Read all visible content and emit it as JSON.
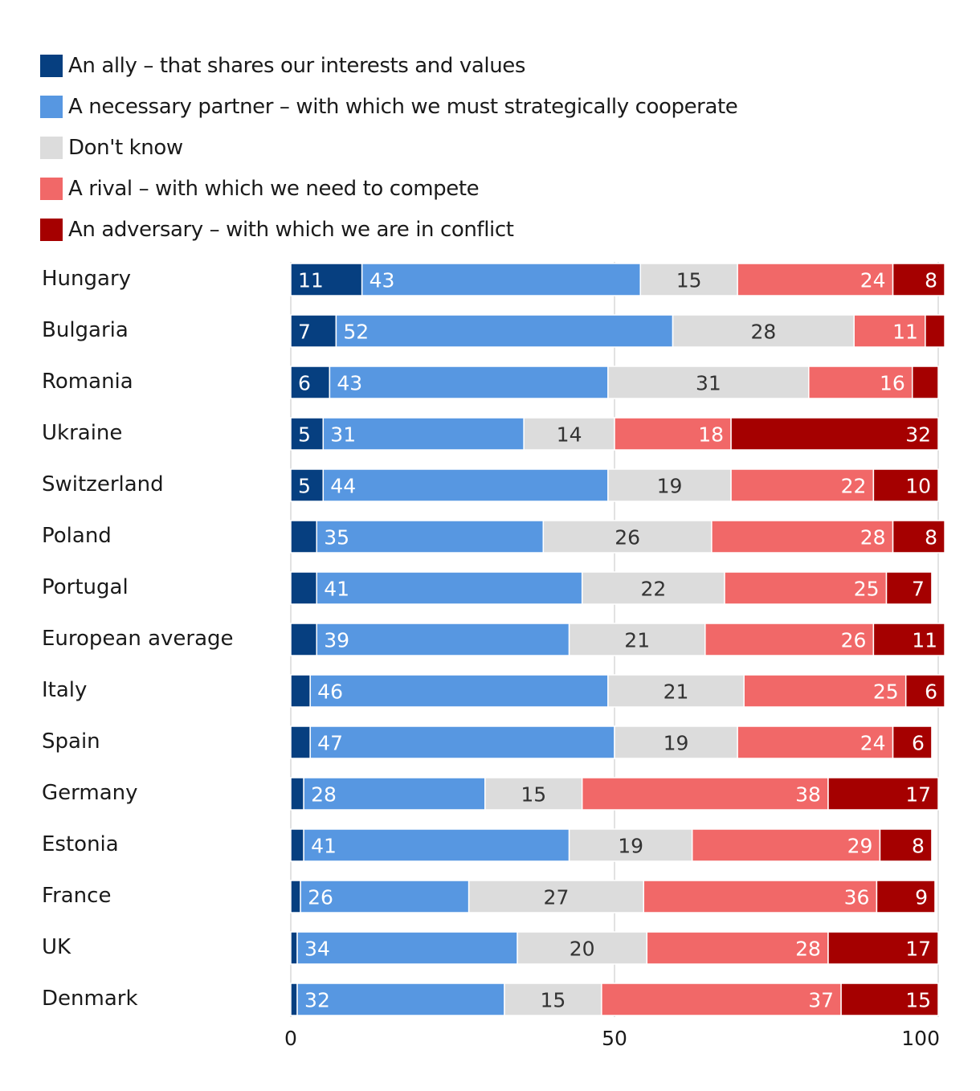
{
  "chart_data": {
    "type": "bar",
    "orientation": "horizontal",
    "stacked": true,
    "title": "",
    "xlabel": "",
    "ylabel": "",
    "xlim": [
      0,
      100
    ],
    "xticks": [
      0,
      50,
      100
    ],
    "grid": true,
    "legend_position": "top-left",
    "categories": [
      "Hungary",
      "Bulgaria",
      "Romania",
      "Ukraine",
      "Switzerland",
      "Poland",
      "Portugal",
      "European average",
      "Italy",
      "Spain",
      "Germany",
      "Estonia",
      "France",
      "UK",
      "Denmark"
    ],
    "series": [
      {
        "name": "An ally – that shares our interests and values",
        "color": "#063f80",
        "label_color": "#ffffff",
        "values": [
          11,
          7,
          6,
          5,
          5,
          4,
          4,
          4,
          3,
          3,
          2,
          2,
          1.5,
          1,
          1
        ],
        "labels": [
          "11",
          "7",
          "6",
          "5",
          "5",
          "",
          "",
          "",
          "",
          "",
          "",
          "",
          "",
          "",
          ""
        ]
      },
      {
        "name": "A necessary partner – with which we must strategically cooperate",
        "color": "#5797e1",
        "label_color": "#ffffff",
        "values": [
          43,
          52,
          43,
          31,
          44,
          35,
          41,
          39,
          46,
          47,
          28,
          41,
          26,
          34,
          32
        ],
        "labels": [
          "43",
          "52",
          "43",
          "31",
          "44",
          "35",
          "41",
          "39",
          "46",
          "47",
          "28",
          "41",
          "26",
          "34",
          "32"
        ]
      },
      {
        "name": "Don't know",
        "color": "#dcdcdc",
        "label_color": "#333333",
        "values": [
          15,
          28,
          31,
          14,
          19,
          26,
          22,
          21,
          21,
          19,
          15,
          19,
          27,
          20,
          15
        ],
        "labels": [
          "15",
          "28",
          "31",
          "14",
          "19",
          "26",
          "22",
          "21",
          "21",
          "19",
          "15",
          "19",
          "27",
          "20",
          "15"
        ]
      },
      {
        "name": "A rival – with which we need to compete",
        "color": "#f16868",
        "label_color": "#ffffff",
        "values": [
          24,
          11,
          16,
          18,
          22,
          28,
          25,
          26,
          25,
          24,
          38,
          29,
          36,
          28,
          37
        ],
        "labels": [
          "24",
          "11",
          "16",
          "18",
          "22",
          "28",
          "25",
          "26",
          "25",
          "24",
          "38",
          "29",
          "36",
          "28",
          "37"
        ]
      },
      {
        "name": "An adversary – with which we are in conflict",
        "color": "#a50000",
        "label_color": "#ffffff",
        "values": [
          8,
          3,
          4,
          32,
          10,
          8,
          7,
          11,
          6,
          6,
          17,
          8,
          9,
          17,
          15
        ],
        "labels": [
          "8",
          "",
          "",
          "32",
          "10",
          "8",
          "7",
          "11",
          "6",
          "6",
          "17",
          "8",
          "9",
          "17",
          "15"
        ]
      }
    ]
  }
}
